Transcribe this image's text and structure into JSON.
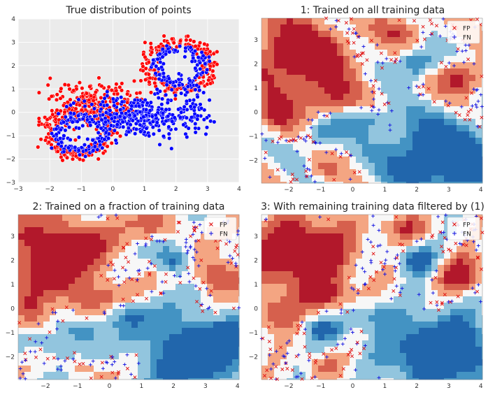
{
  "colors": {
    "panel_bg": "#ebebeb",
    "grid": "#ffffff",
    "class_red": "#ff0000",
    "class_blue": "#0000ff",
    "fp": "#e01010",
    "fn": "#1010e0",
    "contour": [
      "#b2182b",
      "#d6604d",
      "#f4a582",
      "#f7f7f7",
      "#92c5de",
      "#4393c3",
      "#2166ac"
    ]
  },
  "panels": [
    {
      "title": "True distribution of points",
      "xticks": [
        "−3",
        "−2",
        "−1",
        "0",
        "1",
        "2",
        "3",
        "4"
      ],
      "yticks": [
        "−3",
        "−2",
        "−1",
        "0",
        "1",
        "2",
        "3",
        "4"
      ]
    },
    {
      "title": "1: Trained on all training data",
      "xticks": [
        "−2",
        "−1",
        "0",
        "1",
        "2",
        "3",
        "4"
      ],
      "yticks": [
        "−2",
        "−1",
        "0",
        "1",
        "2",
        "3"
      ]
    },
    {
      "title": "2: Trained on a fraction of training data",
      "xticks": [
        "−2",
        "−1",
        "0",
        "1",
        "2",
        "3",
        "4"
      ],
      "yticks": [
        "−2",
        "−1",
        "0",
        "1",
        "2",
        "3"
      ]
    },
    {
      "title": "3: With remaining training data filtered by (1)",
      "xticks": [
        "−2",
        "−1",
        "0",
        "1",
        "2",
        "3",
        "4"
      ],
      "yticks": [
        "−2",
        "−1",
        "0",
        "1",
        "2",
        "3"
      ]
    }
  ],
  "legend": {
    "fp": "FP",
    "fn": "FN"
  },
  "chart_data": [
    {
      "type": "scatter",
      "title": "True distribution of points",
      "xlim": [
        -3,
        4
      ],
      "ylim": [
        -3,
        4
      ],
      "grid": true,
      "series": [
        {
          "color": "#ff0000",
          "description_points": [
            [
              -1.6,
              0.1
            ],
            [
              -1.2,
              0.5
            ],
            [
              -0.4,
              0.8
            ],
            [
              0.4,
              0.4
            ],
            [
              0.6,
              -0.3
            ],
            [
              -2.0,
              -1.5
            ],
            [
              -0.3,
              -1.7
            ],
            [
              1.5,
              3.1
            ],
            [
              2.6,
              3.0
            ],
            [
              3.1,
              1.2
            ]
          ]
        },
        {
          "color": "#0000ff",
          "description_points": [
            [
              -1.9,
              -0.3
            ],
            [
              -1.4,
              -1.2
            ],
            [
              -0.5,
              -1.5
            ],
            [
              0.3,
              -0.6
            ],
            [
              0.9,
              0.0
            ],
            [
              1.8,
              -0.6
            ],
            [
              2.5,
              0.6
            ],
            [
              1.6,
              2.0
            ],
            [
              2.8,
              2.4
            ],
            [
              -0.2,
              0.3
            ]
          ]
        }
      ]
    },
    {
      "type": "heatmap",
      "title": "1: Trained on all training data",
      "xlim": [
        -2.85,
        4.05
      ],
      "ylim": [
        -2.95,
        3.9
      ],
      "legend": [
        "FP",
        "FN"
      ],
      "series": [
        {
          "name": "FP",
          "description_points": [
            [
              -1.5,
              -1.2
            ],
            [
              -0.8,
              -0.9
            ],
            [
              0.6,
              0.1
            ],
            [
              1.4,
              0.7
            ],
            [
              2.2,
              1.4
            ],
            [
              2.7,
              1.5
            ],
            [
              1.6,
              2.3
            ],
            [
              2.4,
              2.6
            ]
          ]
        },
        {
          "name": "FN",
          "description_points": [
            [
              -1.9,
              -0.6
            ],
            [
              -1.2,
              -1.7
            ],
            [
              -0.4,
              -0.1
            ],
            [
              0.1,
              0.9
            ],
            [
              1.1,
              0.2
            ],
            [
              1.9,
              1.0
            ],
            [
              1.4,
              2.8
            ],
            [
              3.2,
              2.6
            ]
          ]
        }
      ]
    },
    {
      "type": "heatmap",
      "title": "2: Trained on a fraction of training data",
      "xlim": [
        -2.85,
        4.05
      ],
      "ylim": [
        -2.95,
        3.9
      ],
      "legend": [
        "FP",
        "FN"
      ],
      "series": [
        {
          "name": "FP",
          "description_points": [
            [
              -2.0,
              -1.7
            ],
            [
              -0.9,
              -0.2
            ],
            [
              -0.2,
              -0.8
            ],
            [
              1.4,
              0.8
            ],
            [
              2.3,
              1.6
            ],
            [
              2.8,
              0.6
            ]
          ]
        },
        {
          "name": "FN",
          "description_points": [
            [
              -1.7,
              0.2
            ],
            [
              -1.0,
              -1.3
            ],
            [
              0.1,
              0.4
            ],
            [
              0.9,
              0.0
            ],
            [
              1.6,
              2.7
            ],
            [
              2.5,
              2.2
            ],
            [
              3.2,
              1.5
            ]
          ]
        }
      ]
    },
    {
      "type": "heatmap",
      "title": "3: With remaining training data filtered by (1)",
      "xlim": [
        -2.85,
        4.05
      ],
      "ylim": [
        -2.95,
        3.9
      ],
      "legend": [
        "FP",
        "FN"
      ],
      "series": [
        {
          "name": "FP",
          "description_points": [
            [
              -1.5,
              -1.6
            ],
            [
              -0.6,
              -1.0
            ],
            [
              0.8,
              0.4
            ],
            [
              1.8,
              2.9
            ],
            [
              2.6,
              2.3
            ],
            [
              3.0,
              1.3
            ]
          ]
        },
        {
          "name": "FN",
          "description_points": [
            [
              -2.0,
              -0.9
            ],
            [
              -0.8,
              -0.3
            ],
            [
              -0.1,
              0.7
            ],
            [
              1.2,
              0.5
            ],
            [
              1.6,
              2.4
            ],
            [
              2.9,
              1.8
            ],
            [
              3.3,
              1.0
            ]
          ]
        }
      ]
    }
  ]
}
